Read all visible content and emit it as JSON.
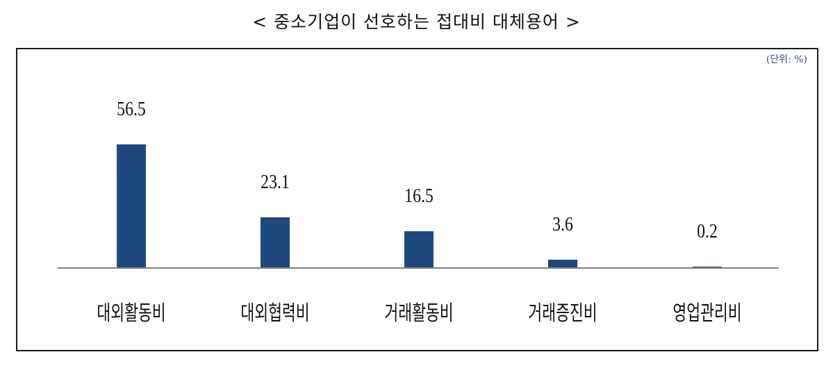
{
  "title": "< 중소기업이 선호하는 접대비 대체용어 >",
  "unit_label": "(단위: %)",
  "bar_color": "#1f497d",
  "chart_data": {
    "type": "bar",
    "title": "< 중소기업이 선호하는 접대비 대체용어 >",
    "unit": "(단위: %)",
    "categories": [
      "대외활동비",
      "대외협력비",
      "거래활동비",
      "거래증진비",
      "영업관리비"
    ],
    "values": [
      56.5,
      23.1,
      16.5,
      3.6,
      0.2
    ],
    "value_labels": [
      "56.5",
      "23.1",
      "16.5",
      "3.6",
      "0.2"
    ],
    "xlabel": "",
    "ylabel": "",
    "ylim": [
      0,
      60
    ],
    "grid": false,
    "legend": null
  }
}
